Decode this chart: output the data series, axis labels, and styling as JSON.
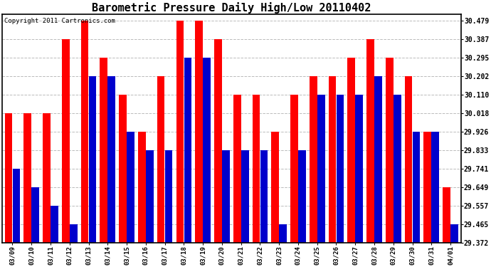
{
  "title": "Barometric Pressure Daily High/Low 20110402",
  "copyright": "Copyright 2011 Cartronics.com",
  "dates": [
    "03/09",
    "03/10",
    "03/11",
    "03/12",
    "03/13",
    "03/14",
    "03/15",
    "03/16",
    "03/17",
    "03/18",
    "03/19",
    "03/20",
    "03/21",
    "03/22",
    "03/23",
    "03/24",
    "03/25",
    "03/26",
    "03/27",
    "03/28",
    "03/29",
    "03/30",
    "03/31",
    "04/01"
  ],
  "high_values": [
    30.018,
    30.018,
    30.018,
    30.387,
    30.479,
    30.295,
    30.11,
    29.926,
    30.202,
    30.479,
    30.479,
    30.387,
    30.11,
    30.11,
    29.926,
    30.11,
    30.202,
    30.202,
    30.295,
    30.387,
    30.295,
    30.202,
    29.926,
    29.649
  ],
  "low_values": [
    29.741,
    29.649,
    29.557,
    29.465,
    30.202,
    30.202,
    29.926,
    29.833,
    29.833,
    30.295,
    30.295,
    29.833,
    29.833,
    29.833,
    29.465,
    29.833,
    30.11,
    30.11,
    30.11,
    30.202,
    30.11,
    29.926,
    29.926,
    29.465
  ],
  "bar_color_high": "#FF0000",
  "bar_color_low": "#0000CC",
  "background_color": "#FFFFFF",
  "plot_bg_color": "#FFFFFF",
  "grid_color": "#BBBBBB",
  "yticks": [
    29.372,
    29.465,
    29.557,
    29.649,
    29.741,
    29.833,
    29.926,
    30.018,
    30.11,
    30.202,
    30.295,
    30.387,
    30.479
  ],
  "ylim_min": 29.372,
  "ylim_max": 30.51,
  "title_fontsize": 11,
  "copyright_fontsize": 6.5
}
